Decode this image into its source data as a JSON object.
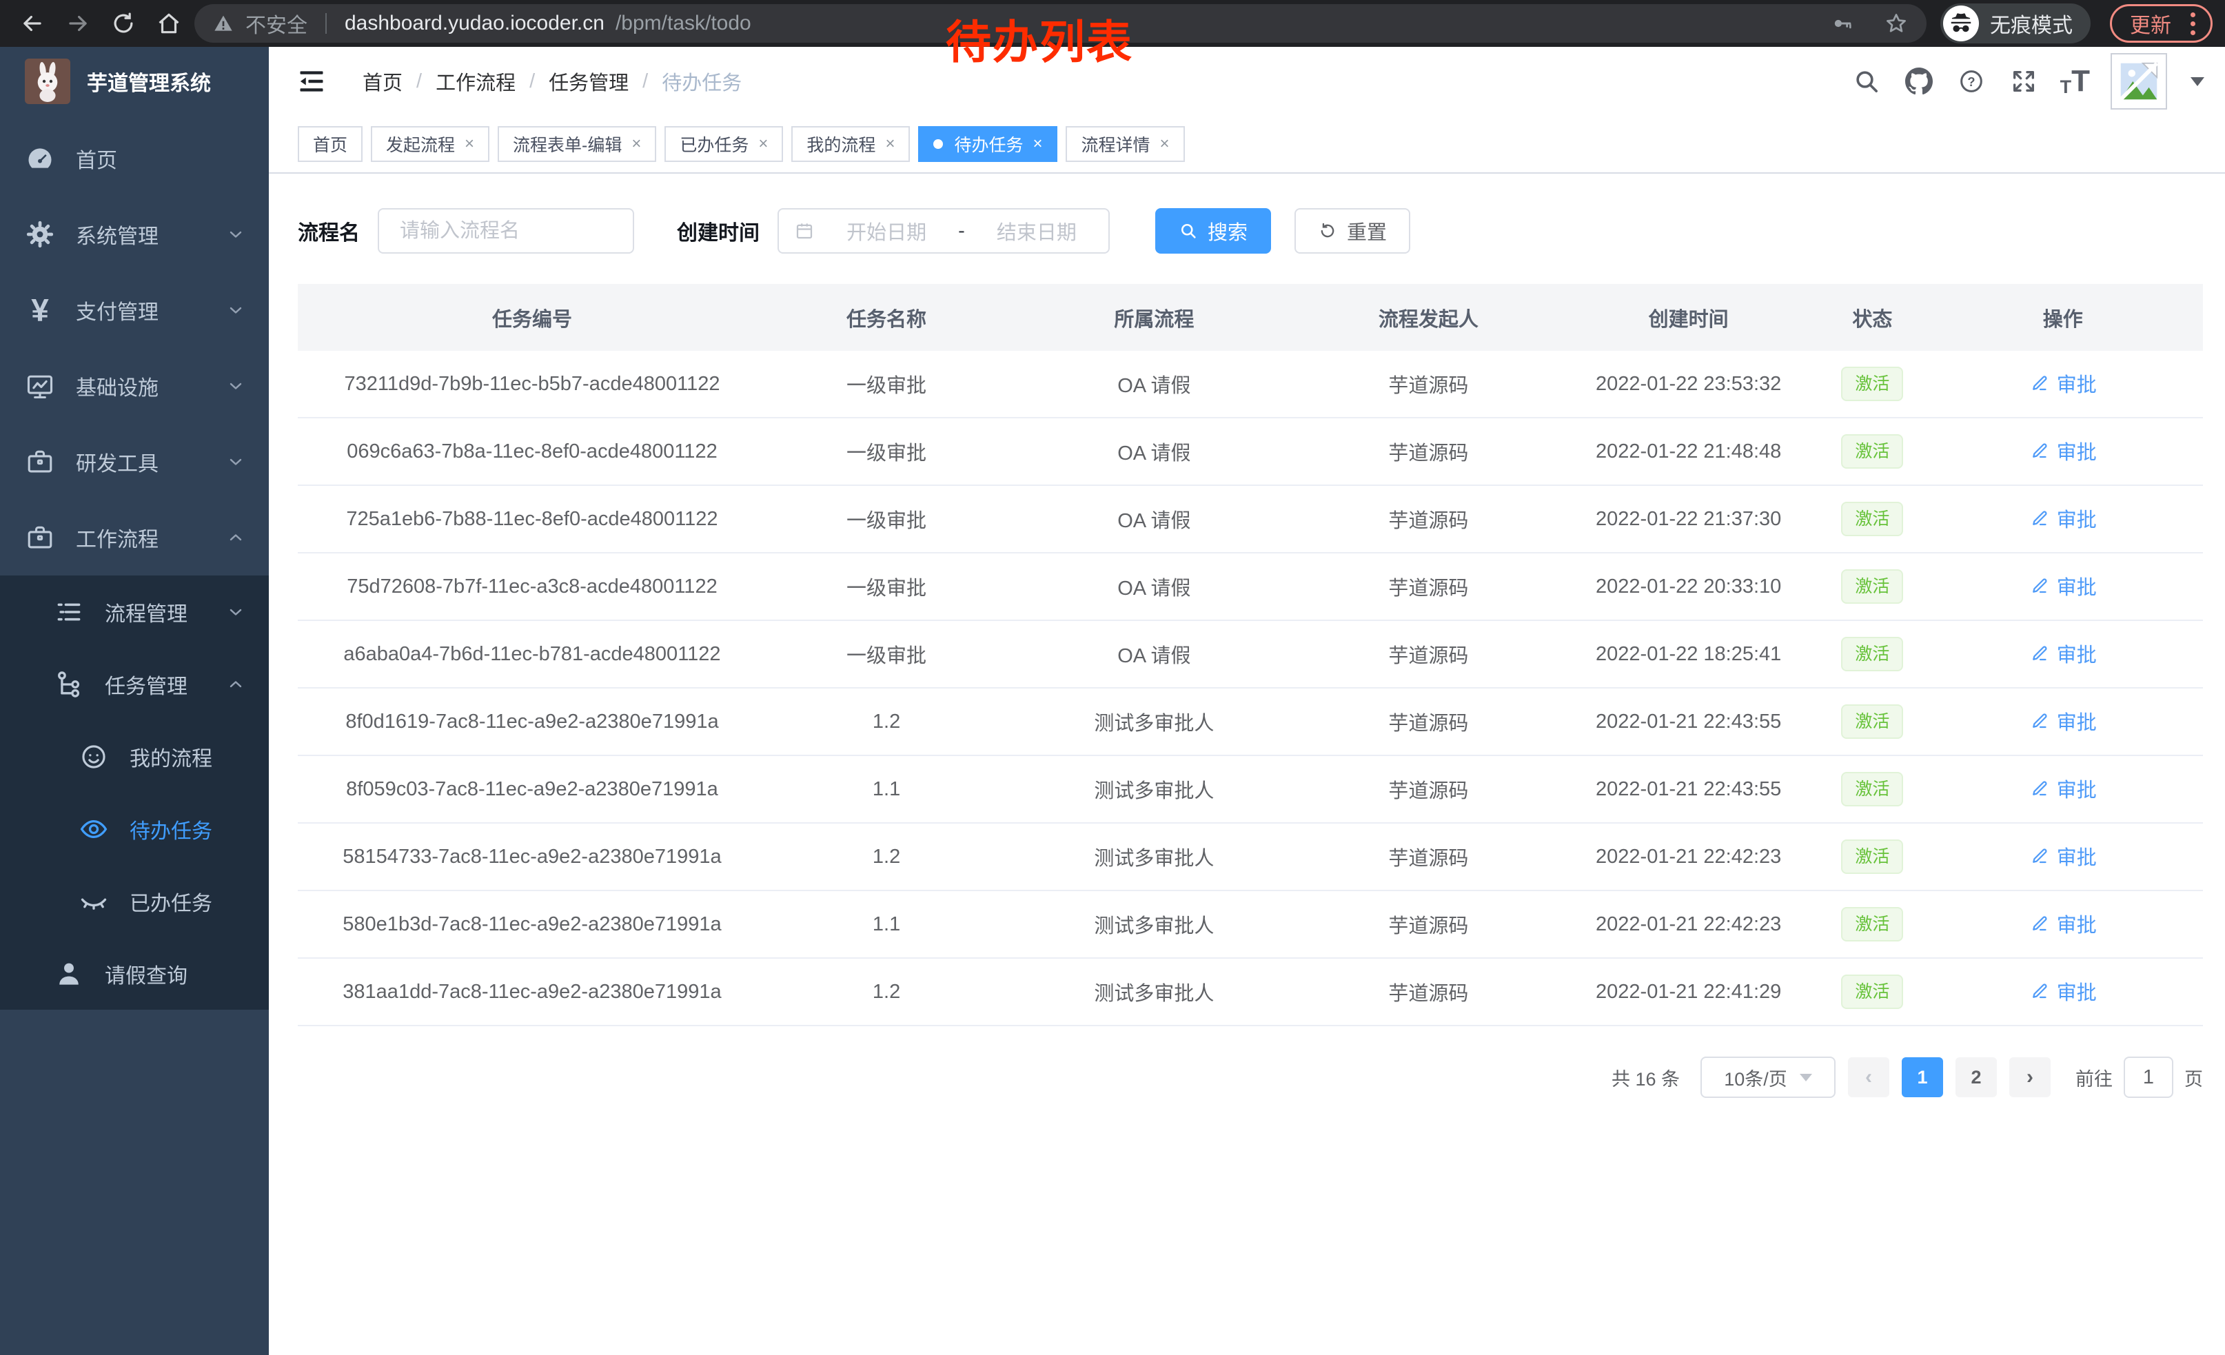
{
  "browser": {
    "security_label": "不安全",
    "url_host": "dashboard.yudao.iocoder.cn",
    "url_path": "/bpm/task/todo",
    "incognito_label": "无痕模式",
    "update_label": "更新"
  },
  "annotation": {
    "text": "待办列表",
    "color": "#fe2c00"
  },
  "sidebar": {
    "title": "芋道管理系统",
    "items": [
      {
        "label": "首页",
        "icon": "dashboard",
        "indent": 1
      },
      {
        "label": "系统管理",
        "icon": "gear",
        "indent": 1,
        "chevron": "down"
      },
      {
        "label": "支付管理",
        "icon": "yen",
        "indent": 1,
        "chevron": "down"
      },
      {
        "label": "基础设施",
        "icon": "monitor",
        "indent": 1,
        "chevron": "down"
      },
      {
        "label": "研发工具",
        "icon": "briefcase",
        "indent": 1,
        "chevron": "down"
      },
      {
        "label": "工作流程",
        "icon": "briefcase",
        "indent": 1,
        "chevron": "up"
      },
      {
        "label": "流程管理",
        "icon": "list",
        "indent": 2,
        "sub": true,
        "chevron": "down"
      },
      {
        "label": "任务管理",
        "icon": "tree",
        "indent": 2,
        "sub": true,
        "chevron": "up"
      },
      {
        "label": "我的流程",
        "icon": "face",
        "indent": 3,
        "sub": true
      },
      {
        "label": "待办任务",
        "icon": "eye",
        "indent": 3,
        "sub": true,
        "active": true
      },
      {
        "label": "已办任务",
        "icon": "eye-closed",
        "indent": 3,
        "sub": true
      },
      {
        "label": "请假查询",
        "icon": "user",
        "indent": 2,
        "sub": true
      }
    ]
  },
  "navbar": {
    "breadcrumb": [
      {
        "label": "首页"
      },
      {
        "label": "工作流程"
      },
      {
        "label": "任务管理"
      },
      {
        "label": "待办任务",
        "active": true
      }
    ]
  },
  "tabs": [
    {
      "label": "首页",
      "closable": false
    },
    {
      "label": "发起流程",
      "closable": true
    },
    {
      "label": "流程表单-编辑",
      "closable": true
    },
    {
      "label": "已办任务",
      "closable": true
    },
    {
      "label": "我的流程",
      "closable": true
    },
    {
      "label": "待办任务",
      "closable": true,
      "active": true
    },
    {
      "label": "流程详情",
      "closable": true
    }
  ],
  "filters": {
    "name_label": "流程名",
    "name_placeholder": "请输入流程名",
    "time_label": "创建时间",
    "start_placeholder": "开始日期",
    "range_separator": "-",
    "end_placeholder": "结束日期",
    "search_label": "搜索",
    "reset_label": "重置"
  },
  "table": {
    "columns": [
      "任务编号",
      "任务名称",
      "所属流程",
      "流程发起人",
      "创建时间",
      "状态",
      "操作"
    ],
    "rows": [
      {
        "id": "73211d9d-7b9b-11ec-b5b7-acde48001122",
        "name": "一级审批",
        "process": "OA 请假",
        "starter": "芋道源码",
        "created": "2022-01-22 23:53:32",
        "status": "激活",
        "action": "审批"
      },
      {
        "id": "069c6a63-7b8a-11ec-8ef0-acde48001122",
        "name": "一级审批",
        "process": "OA 请假",
        "starter": "芋道源码",
        "created": "2022-01-22 21:48:48",
        "status": "激活",
        "action": "审批"
      },
      {
        "id": "725a1eb6-7b88-11ec-8ef0-acde48001122",
        "name": "一级审批",
        "process": "OA 请假",
        "starter": "芋道源码",
        "created": "2022-01-22 21:37:30",
        "status": "激活",
        "action": "审批"
      },
      {
        "id": "75d72608-7b7f-11ec-a3c8-acde48001122",
        "name": "一级审批",
        "process": "OA 请假",
        "starter": "芋道源码",
        "created": "2022-01-22 20:33:10",
        "status": "激活",
        "action": "审批"
      },
      {
        "id": "a6aba0a4-7b6d-11ec-b781-acde48001122",
        "name": "一级审批",
        "process": "OA 请假",
        "starter": "芋道源码",
        "created": "2022-01-22 18:25:41",
        "status": "激活",
        "action": "审批"
      },
      {
        "id": "8f0d1619-7ac8-11ec-a9e2-a2380e71991a",
        "name": "1.2",
        "process": "测试多审批人",
        "starter": "芋道源码",
        "created": "2022-01-21 22:43:55",
        "status": "激活",
        "action": "审批"
      },
      {
        "id": "8f059c03-7ac8-11ec-a9e2-a2380e71991a",
        "name": "1.1",
        "process": "测试多审批人",
        "starter": "芋道源码",
        "created": "2022-01-21 22:43:55",
        "status": "激活",
        "action": "审批"
      },
      {
        "id": "58154733-7ac8-11ec-a9e2-a2380e71991a",
        "name": "1.2",
        "process": "测试多审批人",
        "starter": "芋道源码",
        "created": "2022-01-21 22:42:23",
        "status": "激活",
        "action": "审批"
      },
      {
        "id": "580e1b3d-7ac8-11ec-a9e2-a2380e71991a",
        "name": "1.1",
        "process": "测试多审批人",
        "starter": "芋道源码",
        "created": "2022-01-21 22:42:23",
        "status": "激活",
        "action": "审批"
      },
      {
        "id": "381aa1dd-7ac8-11ec-a9e2-a2380e71991a",
        "name": "1.2",
        "process": "测试多审批人",
        "starter": "芋道源码",
        "created": "2022-01-21 22:41:29",
        "status": "激活",
        "action": "审批"
      }
    ]
  },
  "pagination": {
    "total_label": "共 16 条",
    "page_size_label": "10条/页",
    "pages": [
      {
        "label": "1",
        "active": true
      },
      {
        "label": "2"
      }
    ],
    "goto_label": "前往",
    "goto_value": "1",
    "page_unit_label": "页"
  },
  "colors": {
    "accent": "#409eff",
    "status_green": "#67c23a",
    "annotation_red": "#fe2c00",
    "sidebar_bg": "#304156",
    "submenu_bg": "#1f2d3d"
  }
}
